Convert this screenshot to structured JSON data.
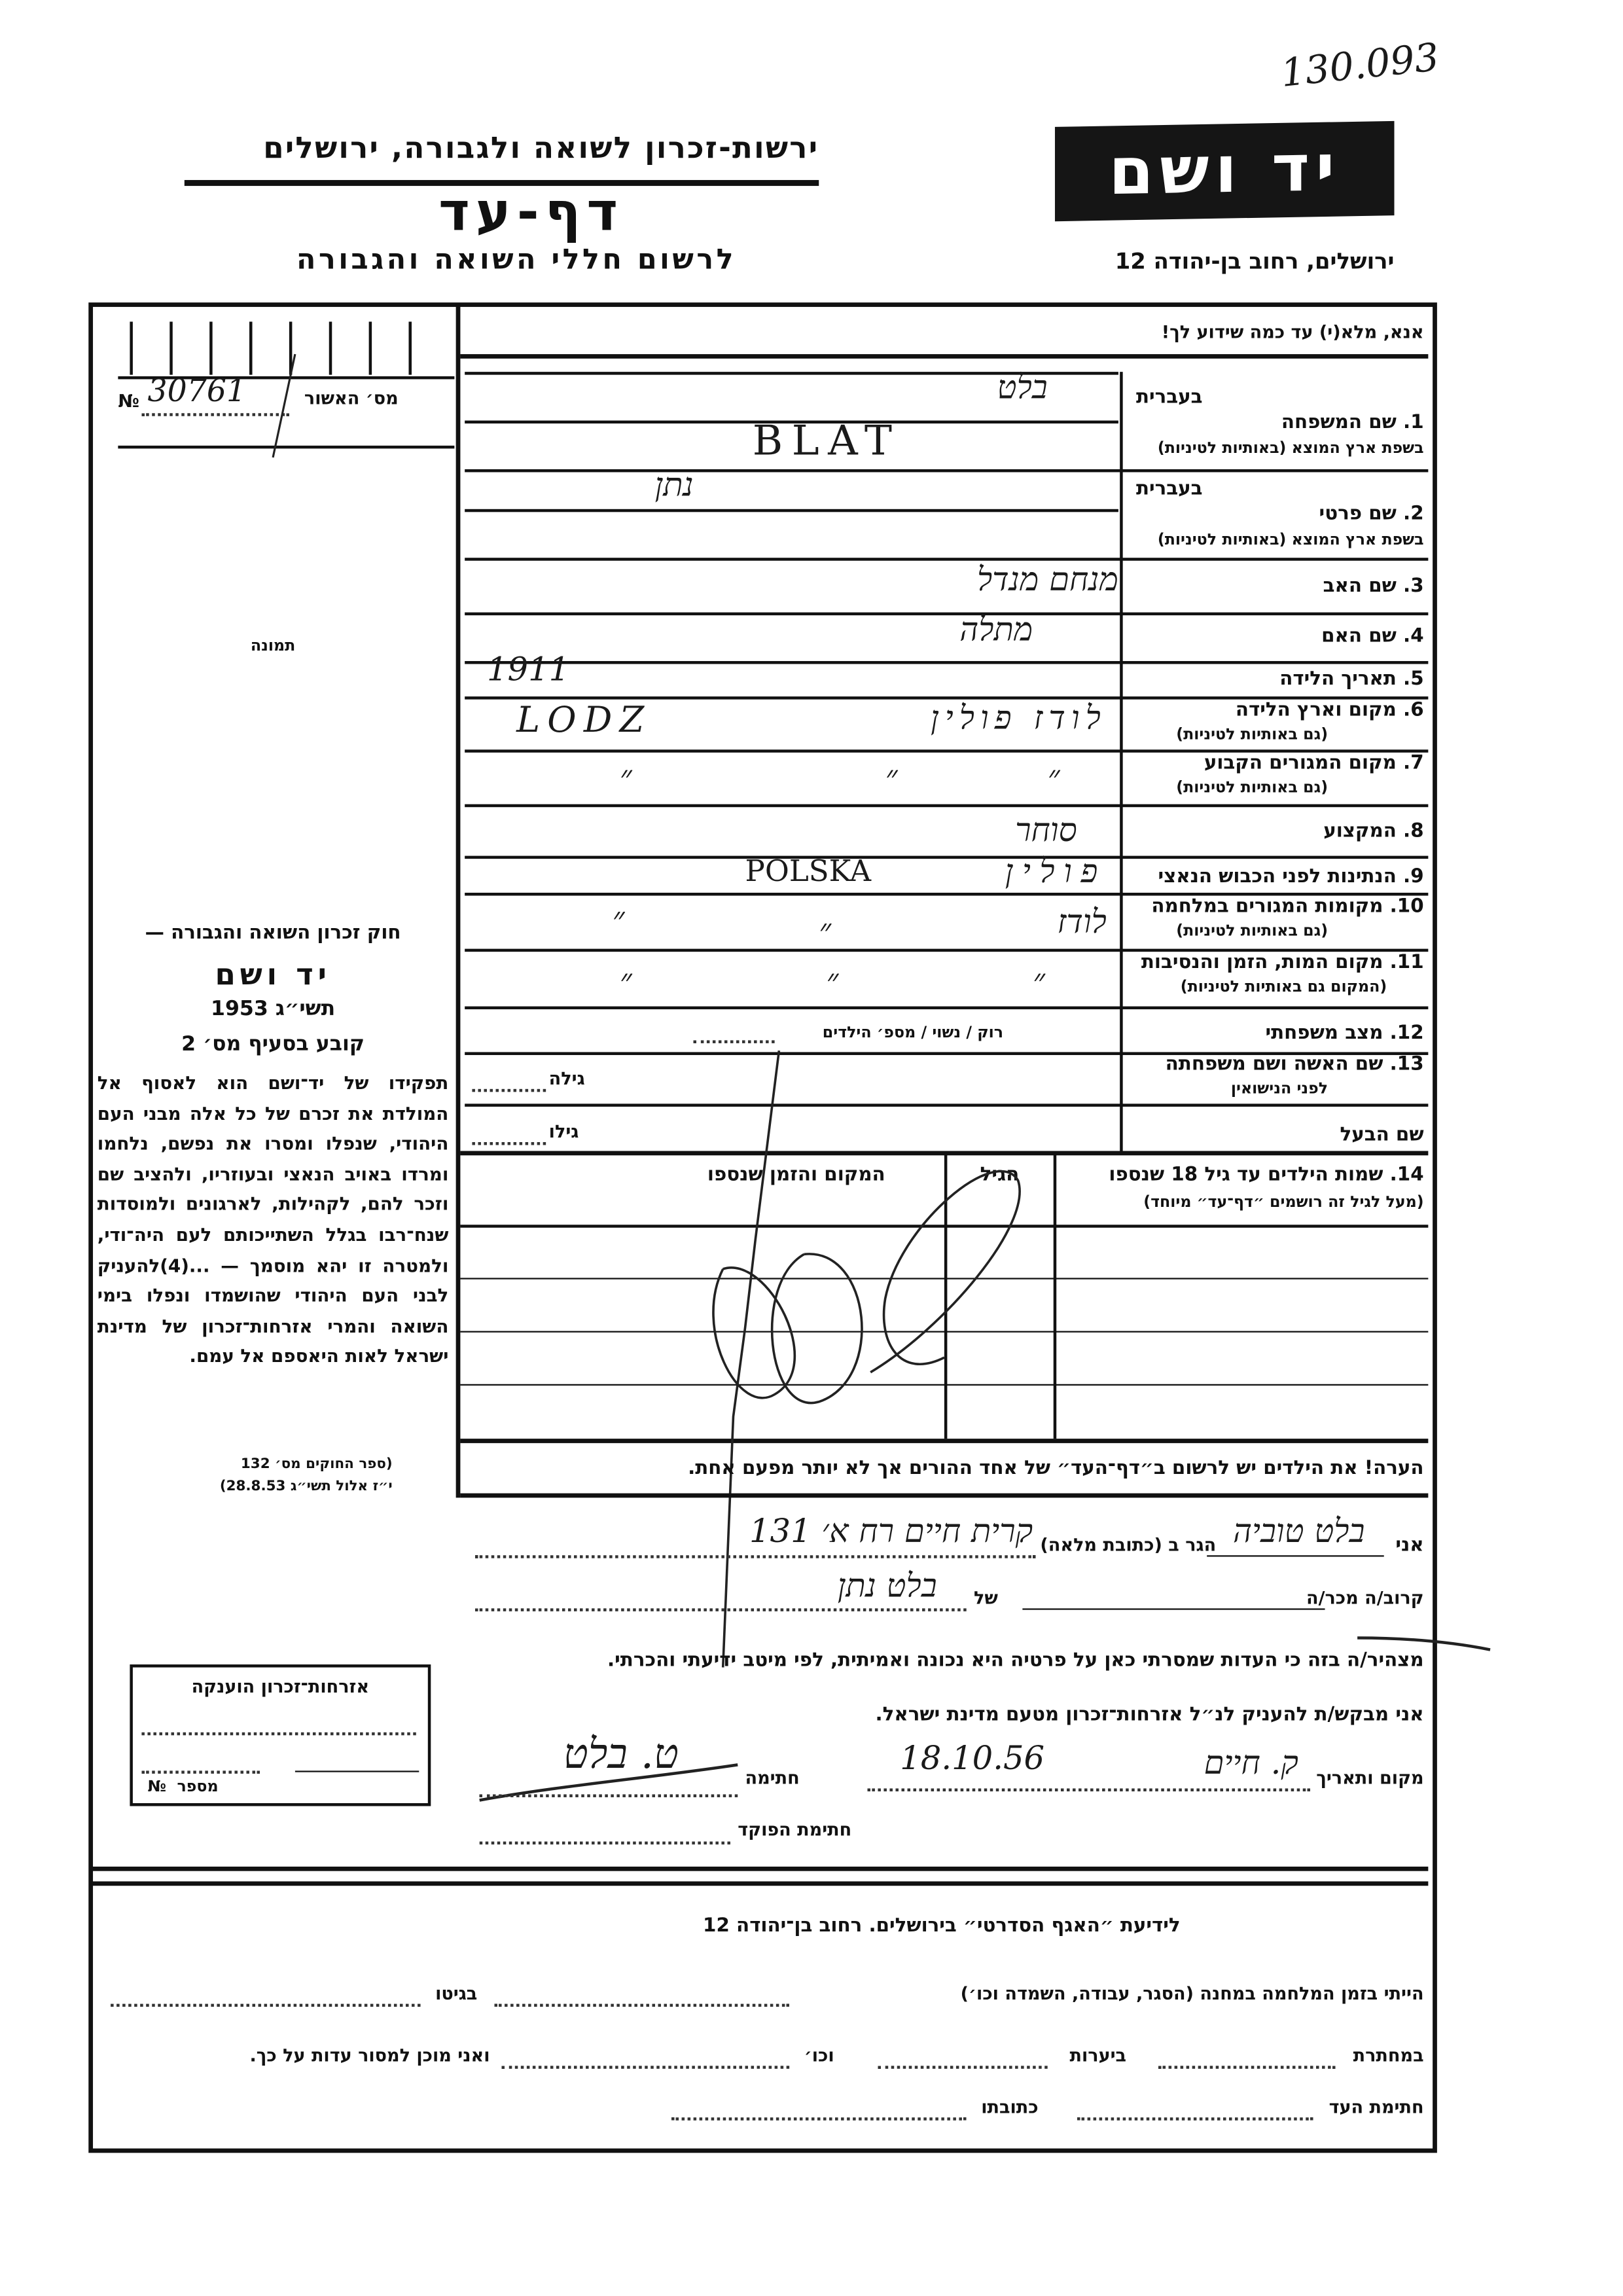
{
  "archive_number": "130.093",
  "header": {
    "organization": "ירשות-זכרון לשואה ולגבורה, ירושלים",
    "title": "דף-עד",
    "subtitle": "לרשום חללי השואה והגבורה",
    "logo_text": "יד ושם",
    "address": "ירושלים, רחוב בן-יהודה 12"
  },
  "left_column": {
    "approval_label": "מס׳ האשור",
    "approval_no_symbol": "№",
    "approval_number": "30761",
    "photo_label": "תמונה",
    "law_heading": "חוק זכרון השואה והגבורה —",
    "law_name": "יד ושם",
    "law_year": "תשי״ג 1953",
    "law_clause": "קובע בסעיף מס׳ 2",
    "law_text": "תפקידו של יד־ושם הוא לאסוף אל המולדת את זכרם של כל אלה מבני העם היהודי, שנפלו ומסרו את נפשם, נלחמו ומרדו באויב הנאצי ובעוזריו, ולהציב שם וזכר להם, לקהילות, לארגונים ולמוסדות שנח־רבו בגלל השתייכותם לעם היה־ודי, ולמטרה זו יהא מוסמך — ...(4)להעניק לבני העם היהודי שהושמדו ונפלו בימי השואה והמרי אזרחות־זכרון של מדינת ישראל לאות היאספם אל עמם.",
    "law_source_1": "(ספר החוקים מס׳ 132",
    "law_source_2": "י״ז אלול תשי״ג 28.8.53)"
  },
  "instruction": "אנא, מלא(י) עד כמה שידוע לך!",
  "fields": {
    "in_hebrew": "בעברית",
    "f1_label": "1. שם המשפחה",
    "f1_sub": "בשפת ארץ המוצא (באותיות לטיניות)",
    "f1_value_he": "בלט",
    "f1_value_latin": "BLAT",
    "f2_label": "2. שם פרטי",
    "f2_sub": "בשפת ארץ המוצא (באותיות לטיניות)",
    "f2_value_he": "נתן",
    "f3_label": "3. שם האב",
    "f3_value": "מנחם מנדל",
    "f4_label": "4. שם האם",
    "f4_value": "מתלה",
    "f5_label": "5. תאריך הלידה",
    "f5_value": "1911",
    "f6_label": "6. מקום וארץ הלידה",
    "f6_sub": "(גם באותיות לטיניות)",
    "f6_value_he": "לודז פולין",
    "f6_value_latin": "LODZ",
    "f7_label": "7. מקום המגורים הקבוע",
    "f7_sub": "(גם באותיות לטיניות)",
    "f7_values": [
      "״",
      "״",
      "״"
    ],
    "f8_label": "8. המקצוע",
    "f8_value": "סוחר",
    "f9_label": "9. הנתינות לפני הכבוש הנאצי",
    "f9_value_he": "פולין",
    "f9_value_latin": "POLSKA",
    "f10_label": "10. מקומות המגורים במלחמה",
    "f10_sub": "(גם באותיות לטיניות)",
    "f10_values": [
      "לודז",
      "״",
      "״"
    ],
    "f11_label": "11. מקום המות, הזמן והנסיבות",
    "f11_sub": "(המקום גם באותיות לטיניות)",
    "f11_values": [
      "״",
      "״",
      "״"
    ],
    "f12_label": "12. מצב משפחתי",
    "f12_options": "רוק / נשוי / מספ׳ הילדים",
    "f13_label": "13. שם האשה ושם משפחתה",
    "f13_sub": "לפני הנישואין",
    "f13_age": "גילה",
    "husband_label": "שם הבעל",
    "husband_age": "גילו",
    "f14_label": "14. שמות הילדים עד גיל 18 שנספו",
    "f14_sub": "(מעל לגיל זה רושמים ״דף־עד״ מיוחד)",
    "f14_col_age": "הגיל",
    "f14_col_place": "המקום והזמן שנספו"
  },
  "note": "הערה!  את הילדים יש לרשום ב״דף־העד״ של אחד ההורים אך לא יותר מפעם אחת.",
  "declaration": {
    "i_label": "אני",
    "i_value": "בלט טוביה",
    "address_label": "הגר ב (כתובת מלאה)",
    "address_value": "קרית חיים רח א׳ 131",
    "relative_label": "קרוב/ה מכר/ה",
    "of_label": "של",
    "of_value": "בלט נתן",
    "statement": "מצהיר/ה בזה כי העדות שמסרתי כאן על פרטיה היא נכונה ואמיתית, לפי מיטב ידיעתי והכרתי.",
    "request": "אני מבקש/ת להעניק לנ״ל אזרחות־זכרון מטעם מדינת ישראל.",
    "place_date_label": "מקום ותאריך",
    "place_value": "ק. חיים",
    "date_value": "18.10.56",
    "signature_label": "חתימה",
    "signature_value": "ט. בלט",
    "officer_signature_label": "חתימת הפוקד"
  },
  "citizenship_box": {
    "title": "אזרחות־זכרון הוענקה",
    "number_label": "מספר",
    "number_symbol": "№"
  },
  "bottom": {
    "title": "לידיעת ״האגף הסדרטי״ בירושלים.  רחוב בן־יהודה 12",
    "camp_label": "הייתי בזמן המלחמה במחנה (הסגר, עבודה, השמדה וכו׳)",
    "ghetto_label": "בגיטו",
    "underground_label": "במחתרת",
    "forests_label": "ביערות",
    "etc_label": "וכו׳",
    "ready_label": "ואני מוכן למסור עדות על כך.",
    "witness_signature_label": "חתימת העד",
    "witness_address_label": "כתובתו"
  }
}
